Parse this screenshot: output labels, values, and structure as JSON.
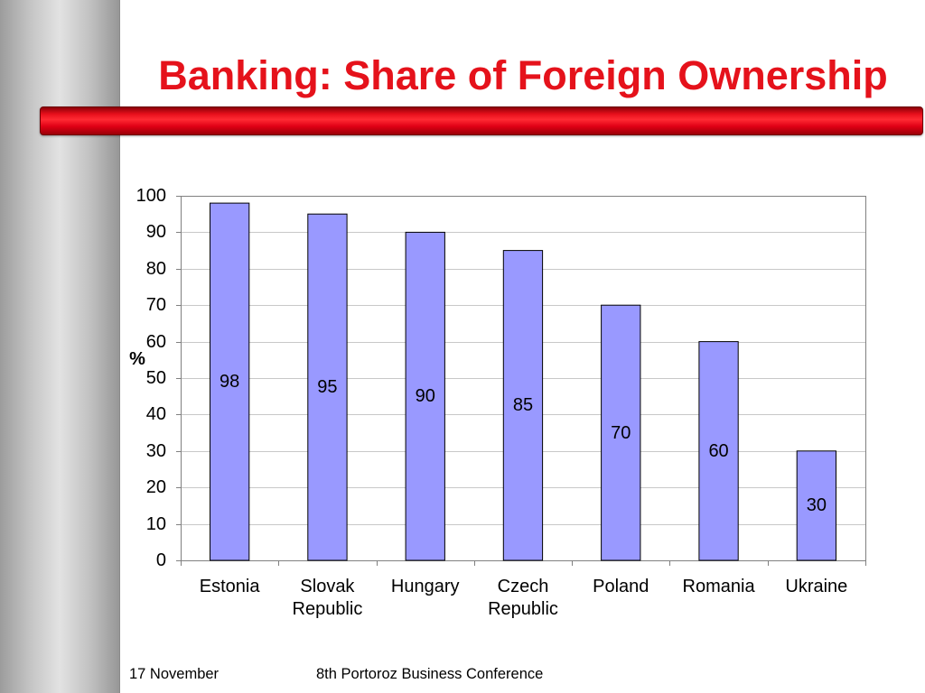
{
  "slide": {
    "footer_date": "17 November",
    "footer_event": "8th Portoroz Business Conference"
  },
  "colors": {
    "title": "#e5121b",
    "accent_bar": "#e10015",
    "bar_fill": "#9999ff",
    "bar_stroke": "#000000",
    "gridline": "#c8c8c8",
    "plot_border": "#808080"
  },
  "chart_data": {
    "type": "bar",
    "title": "Banking: Share of Foreign Ownership",
    "categories": [
      "Estonia",
      "Slovak Republic",
      "Hungary",
      "Czech Republic",
      "Poland",
      "Romania",
      "Ukraine"
    ],
    "values": [
      98,
      95,
      90,
      85,
      70,
      60,
      30
    ],
    "ylabel": "%",
    "ylim": [
      0,
      100
    ],
    "yticks": [
      0,
      10,
      20,
      30,
      40,
      50,
      60,
      70,
      80,
      90,
      100
    ],
    "grid": true,
    "legend": "none",
    "data_labels": true
  }
}
